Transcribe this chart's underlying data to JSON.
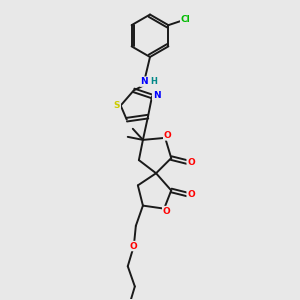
{
  "background_color": "#e8e8e8",
  "bond_color": "#1a1a1a",
  "atom_colors": {
    "O": "#ff0000",
    "N": "#0000ff",
    "S": "#cccc00",
    "Cl": "#00bb00",
    "H": "#008888",
    "C": "#1a1a1a"
  },
  "figsize": [
    3.0,
    3.0
  ],
  "dpi": 100
}
